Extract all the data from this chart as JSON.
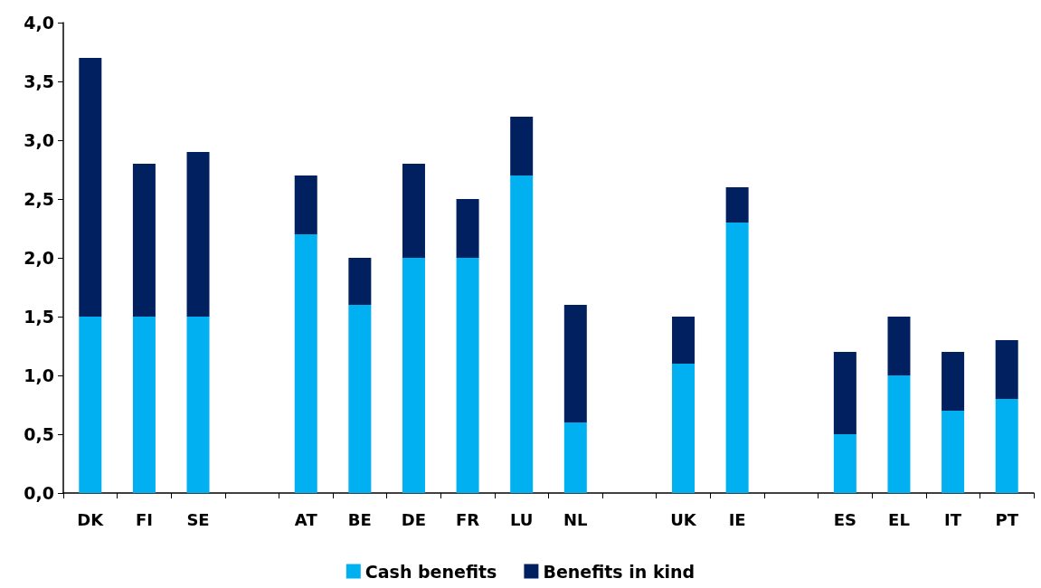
{
  "chart_data": {
    "type": "bar",
    "stacked": true,
    "categories": [
      "DK",
      "FI",
      "SE",
      null,
      "AT",
      "BE",
      "DE",
      "FR",
      "LU",
      "NL",
      null,
      "UK",
      "IE",
      null,
      "ES",
      "EL",
      "IT",
      "PT"
    ],
    "series": [
      {
        "name": "Cash benefits",
        "color": "#00b0f0",
        "values": [
          1.5,
          1.5,
          1.5,
          null,
          2.2,
          1.6,
          2.0,
          2.0,
          2.7,
          0.6,
          null,
          1.1,
          2.3,
          null,
          0.5,
          1.0,
          0.7,
          0.8
        ]
      },
      {
        "name": "Benefits in kind",
        "color": "#002060",
        "values": [
          2.2,
          1.3,
          1.4,
          null,
          0.5,
          0.4,
          0.8,
          0.5,
          0.5,
          1.0,
          null,
          0.4,
          0.3,
          null,
          0.7,
          0.5,
          0.5,
          0.5
        ]
      }
    ],
    "ylim": [
      0,
      4
    ],
    "yticks": [
      {
        "value": 0,
        "label": "0,0"
      },
      {
        "value": 0.5,
        "label": "0,5"
      },
      {
        "value": 1,
        "label": "1,0"
      },
      {
        "value": 1.5,
        "label": "1,5"
      },
      {
        "value": 2,
        "label": "2,0"
      },
      {
        "value": 2.5,
        "label": "2,5"
      },
      {
        "value": 3,
        "label": "3,0"
      },
      {
        "value": 3.5,
        "label": "3,5"
      },
      {
        "value": 4,
        "label": "4,0"
      }
    ],
    "grid": false,
    "legend": "bottom"
  }
}
